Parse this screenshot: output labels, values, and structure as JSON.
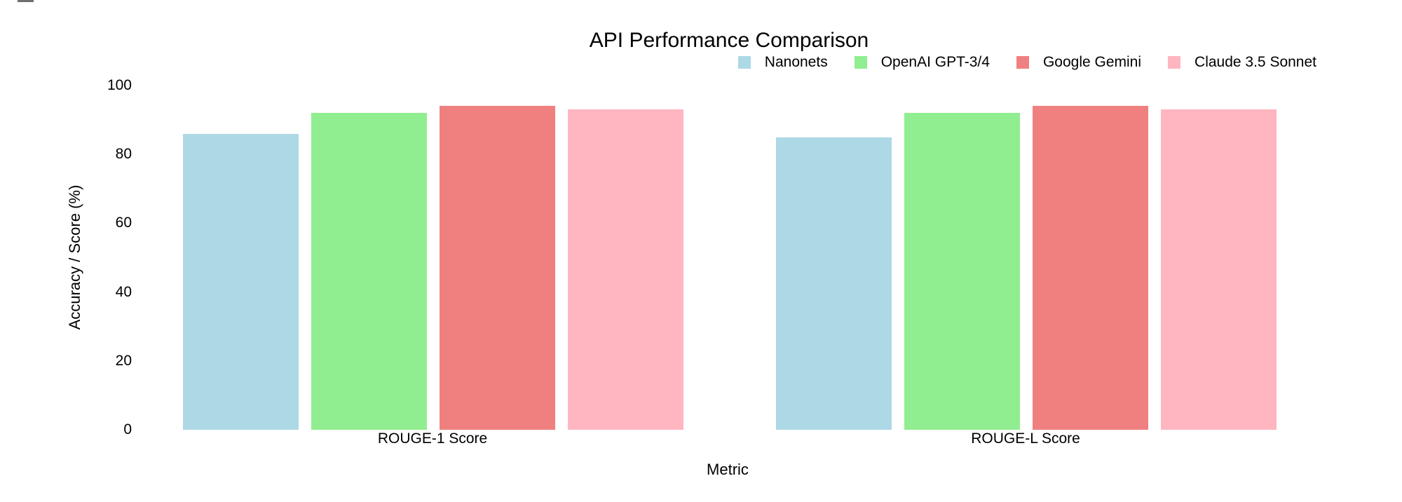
{
  "page": {
    "background": "#ffffff",
    "text_color": "#000000",
    "top_left_fragment_color": "#6f6f6f"
  },
  "chart_data": {
    "type": "bar",
    "title": "API Performance Comparison",
    "xlabel": "Metric",
    "ylabel": "Accuracy / Score (%)",
    "categories": [
      "ROUGE-1 Score",
      "ROUGE-L Score"
    ],
    "series": [
      {
        "name": "Nanonets",
        "color": "#ADD8E6",
        "values": [
          86,
          85
        ]
      },
      {
        "name": "OpenAI GPT-3/4",
        "color": "#90EE90",
        "values": [
          92,
          92
        ]
      },
      {
        "name": "Google Gemini",
        "color": "#F08080",
        "values": [
          94,
          94
        ]
      },
      {
        "name": "Claude 3.5 Sonnet",
        "color": "#FFB6C1",
        "values": [
          93,
          93
        ]
      }
    ],
    "ylim": [
      0,
      100
    ],
    "yticks_top_to_bottom": [
      100,
      80,
      60,
      40,
      20,
      0
    ],
    "grid": false,
    "axis_lines": false,
    "legend_position": "top-right"
  }
}
